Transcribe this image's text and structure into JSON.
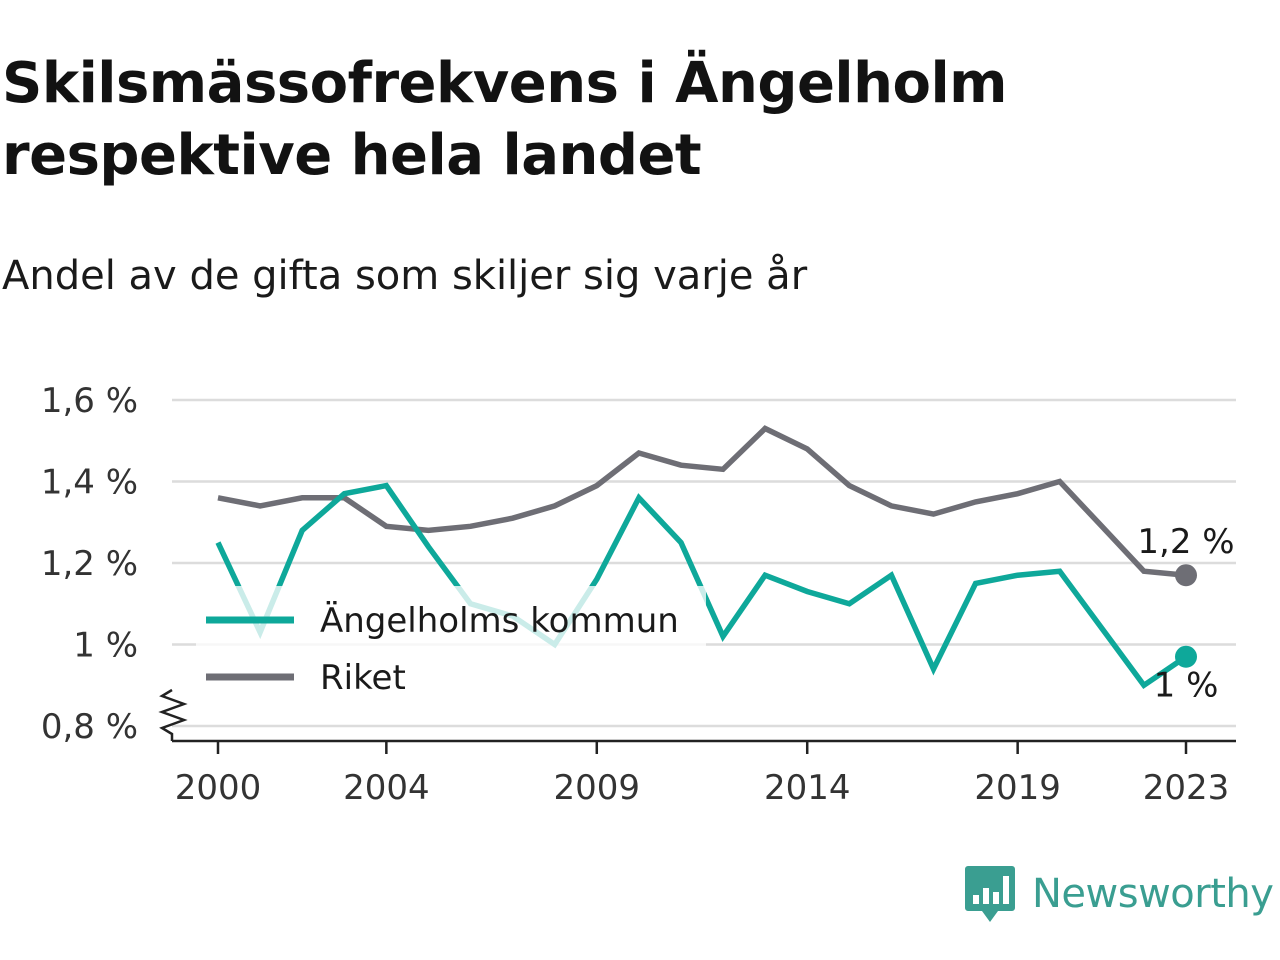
{
  "header": {
    "title": "Skilsmässofrekvens i Ängelholm respektive hela landet",
    "subtitle": "Andel av de gifta som skiljer sig varje år"
  },
  "brand": {
    "name": "Newsworthy",
    "icon": "newsworthy-logo-icon",
    "color": "#3a9e91"
  },
  "chart_data": {
    "type": "line",
    "x": [
      2000,
      2001,
      2002,
      2003,
      2004,
      2005,
      2006,
      2007,
      2008,
      2009,
      2010,
      2011,
      2012,
      2013,
      2014,
      2015,
      2016,
      2017,
      2018,
      2019,
      2020,
      2021,
      2022,
      2023
    ],
    "x_tick_labels": [
      "2000",
      "2004",
      "2009",
      "2014",
      "2019",
      "2023"
    ],
    "x_ticks": [
      2000,
      2004,
      2009,
      2014,
      2019,
      2023
    ],
    "y_tick_labels": [
      "0,8 %",
      "1 %",
      "1,2 %",
      "1,4 %",
      "1,6 %"
    ],
    "y_ticks": [
      0.8,
      1.0,
      1.2,
      1.4,
      1.6
    ],
    "ylim": [
      0.8,
      1.6
    ],
    "xlim": [
      2000,
      2023
    ],
    "y_axis_break": true,
    "grid": "horizontal",
    "legend_position": "left, inside plot",
    "series": [
      {
        "name": "Ängelholms kommun",
        "color": "#0ea89a",
        "values": [
          1.25,
          1.03,
          1.28,
          1.37,
          1.39,
          1.24,
          1.1,
          1.07,
          1.0,
          1.16,
          1.36,
          1.25,
          1.02,
          1.17,
          1.13,
          1.1,
          1.17,
          0.94,
          1.15,
          1.17,
          1.18,
          1.04,
          0.9,
          0.97
        ],
        "end_label": "1 %"
      },
      {
        "name": "Riket",
        "color": "#6e6e75",
        "values": [
          1.36,
          1.34,
          1.36,
          1.36,
          1.29,
          1.28,
          1.29,
          1.31,
          1.34,
          1.39,
          1.47,
          1.44,
          1.43,
          1.53,
          1.48,
          1.39,
          1.34,
          1.32,
          1.35,
          1.37,
          1.4,
          1.29,
          1.18,
          1.17
        ],
        "end_label": "1,2 %"
      }
    ]
  }
}
